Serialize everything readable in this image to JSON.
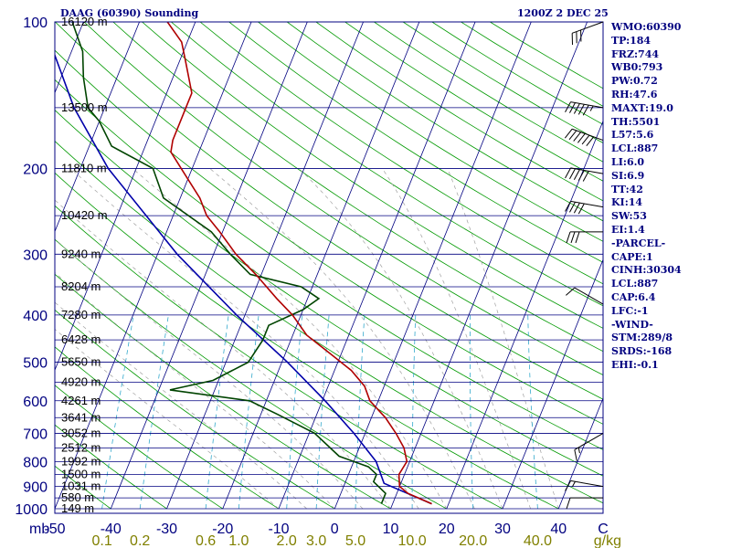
{
  "header": {
    "station": "DAAG (60390) Sounding",
    "valid": "1200Z  2 DEC 25"
  },
  "colors": {
    "frame": "#000080",
    "isobar": "#000080",
    "isotherm": "#000080",
    "dry_adiabat": "#009900",
    "moist_adiabat": "#a0a0a0",
    "mixing_ratio": "#33a9cc",
    "temperature": "#b00000",
    "dewpoint": "#004400",
    "parcel": "#0000aa",
    "wind_barb": "#000000",
    "label_blue": "#000080",
    "label_olive": "#808000"
  },
  "chart_data": {
    "type": "skew-t log-p sounding",
    "title": "DAAG (60390) Sounding",
    "xlabel": "C",
    "pressure_unit": "mb",
    "pressure_ticks": [
      100,
      200,
      300,
      400,
      500,
      600,
      700,
      800,
      900,
      1000
    ],
    "pressure_range": [
      1000,
      100
    ],
    "temperature_ticks": [
      -50,
      -40,
      -30,
      -20,
      -10,
      0,
      10,
      20,
      30,
      40
    ],
    "temperature_range": [
      -50,
      48
    ],
    "mixing_ratio_unit": "g/kg",
    "mixing_ratio_labels": [
      "0.1",
      "0.2",
      "0.6",
      "1.0",
      "2.0",
      "3.0",
      "5.0",
      "10.0",
      "20.0",
      "40.0"
    ],
    "heights": [
      {
        "p": 100,
        "label": "16120 m"
      },
      {
        "p": 150,
        "label": "13500 m"
      },
      {
        "p": 200,
        "label": "11810 m"
      },
      {
        "p": 250,
        "label": "10420 m"
      },
      {
        "p": 300,
        "label": "9240 m"
      },
      {
        "p": 350,
        "label": "8204 m"
      },
      {
        "p": 400,
        "label": "7280 m"
      },
      {
        "p": 450,
        "label": "6428 m"
      },
      {
        "p": 500,
        "label": "5650 m"
      },
      {
        "p": 550,
        "label": "4920 m"
      },
      {
        "p": 600,
        "label": "4261 m"
      },
      {
        "p": 650,
        "label": "3641 m"
      },
      {
        "p": 700,
        "label": "3052 m"
      },
      {
        "p": 750,
        "label": "2512 m"
      },
      {
        "p": 800,
        "label": "1992 m"
      },
      {
        "p": 850,
        "label": "1500 m"
      },
      {
        "p": 900,
        "label": "1031 m"
      },
      {
        "p": 950,
        "label": "580 m"
      },
      {
        "p": 1000,
        "label": "149 m"
      }
    ],
    "temperature_profile": [
      {
        "p": 977,
        "t": 17.0
      },
      {
        "p": 930,
        "t": 12.0
      },
      {
        "p": 900,
        "t": 10.0
      },
      {
        "p": 850,
        "t": 9.0
      },
      {
        "p": 800,
        "t": 9.5
      },
      {
        "p": 750,
        "t": 8.0
      },
      {
        "p": 700,
        "t": 5.5
      },
      {
        "p": 650,
        "t": 2.5
      },
      {
        "p": 600,
        "t": -1.5
      },
      {
        "p": 560,
        "t": -3.5
      },
      {
        "p": 520,
        "t": -7.0
      },
      {
        "p": 480,
        "t": -12.0
      },
      {
        "p": 440,
        "t": -17.5
      },
      {
        "p": 400,
        "t": -21.5
      },
      {
        "p": 370,
        "t": -25.5
      },
      {
        "p": 330,
        "t": -31.0
      },
      {
        "p": 300,
        "t": -36.0
      },
      {
        "p": 270,
        "t": -40.5
      },
      {
        "p": 250,
        "t": -44.0
      },
      {
        "p": 230,
        "t": -46.5
      },
      {
        "p": 205,
        "t": -51.0
      },
      {
        "p": 185,
        "t": -55.0
      },
      {
        "p": 175,
        "t": -55.5
      },
      {
        "p": 140,
        "t": -55.5
      },
      {
        "p": 120,
        "t": -59.0
      },
      {
        "p": 110,
        "t": -61.0
      },
      {
        "p": 100,
        "t": -65.0
      }
    ],
    "dewpoint_profile": [
      {
        "p": 977,
        "t": 8.0
      },
      {
        "p": 930,
        "t": 8.0
      },
      {
        "p": 880,
        "t": 5.0
      },
      {
        "p": 850,
        "t": 5.0
      },
      {
        "p": 820,
        "t": 3.0
      },
      {
        "p": 780,
        "t": -3.0
      },
      {
        "p": 700,
        "t": -9.0
      },
      {
        "p": 640,
        "t": -17.0
      },
      {
        "p": 600,
        "t": -23.0
      },
      {
        "p": 570,
        "t": -38.0
      },
      {
        "p": 545,
        "t": -31.0
      },
      {
        "p": 500,
        "t": -26.0
      },
      {
        "p": 450,
        "t": -25.0
      },
      {
        "p": 420,
        "t": -25.0
      },
      {
        "p": 390,
        "t": -20.0
      },
      {
        "p": 370,
        "t": -18.0
      },
      {
        "p": 350,
        "t": -22.0
      },
      {
        "p": 330,
        "t": -32.0
      },
      {
        "p": 300,
        "t": -37.0
      },
      {
        "p": 270,
        "t": -42.0
      },
      {
        "p": 230,
        "t": -53.0
      },
      {
        "p": 200,
        "t": -57.0
      },
      {
        "p": 180,
        "t": -66.0
      },
      {
        "p": 160,
        "t": -70.0
      },
      {
        "p": 150,
        "t": -73.0
      },
      {
        "p": 130,
        "t": -76.0
      },
      {
        "p": 115,
        "t": -78.0
      },
      {
        "p": 100,
        "t": -82.0
      }
    ],
    "parcel_profile": [
      {
        "p": 977,
        "t": 17.0
      },
      {
        "p": 887,
        "t": 7.0
      },
      {
        "p": 800,
        "t": 4.0
      },
      {
        "p": 700,
        "t": -2.0
      },
      {
        "p": 600,
        "t": -9.5
      },
      {
        "p": 500,
        "t": -19.0
      },
      {
        "p": 400,
        "t": -31.5
      },
      {
        "p": 300,
        "t": -46.5
      },
      {
        "p": 200,
        "t": -65.0
      },
      {
        "p": 150,
        "t": -75.5
      },
      {
        "p": 112,
        "t": -84.0
      }
    ],
    "wind_barbs": [
      {
        "p": 100,
        "dir": 250,
        "spd": 30
      },
      {
        "p": 150,
        "dir": 280,
        "spd": 55
      },
      {
        "p": 175,
        "dir": 290,
        "spd": 60
      },
      {
        "p": 205,
        "dir": 280,
        "spd": 50
      },
      {
        "p": 240,
        "dir": 280,
        "spd": 40
      },
      {
        "p": 270,
        "dir": 270,
        "spd": 30
      },
      {
        "p": 380,
        "dir": 300,
        "spd": 10
      },
      {
        "p": 700,
        "dir": 240,
        "spd": 15
      },
      {
        "p": 900,
        "dir": 280,
        "spd": 15
      },
      {
        "p": 950,
        "dir": 270,
        "spd": 10
      }
    ]
  },
  "indices": [
    "WMO:60390",
    "TP:184",
    "FRZ:744",
    "WB0:793",
    "PW:0.72",
    "RH:47.6",
    "MAXT:19.0",
    "TH:5501",
    "L57:5.6",
    "LCL:887",
    "LI:6.0",
    "SI:6.9",
    "TT:42",
    "KI:14",
    "SW:53",
    "EI:1.4",
    "-PARCEL-",
    "CAPE:1",
    "CINH:30304",
    "LCL:887",
    "CAP:6.4",
    "LFC:-1",
    "-WIND-",
    "STM:289/8",
    "SRDS:-168",
    "EHI:-0.1"
  ]
}
